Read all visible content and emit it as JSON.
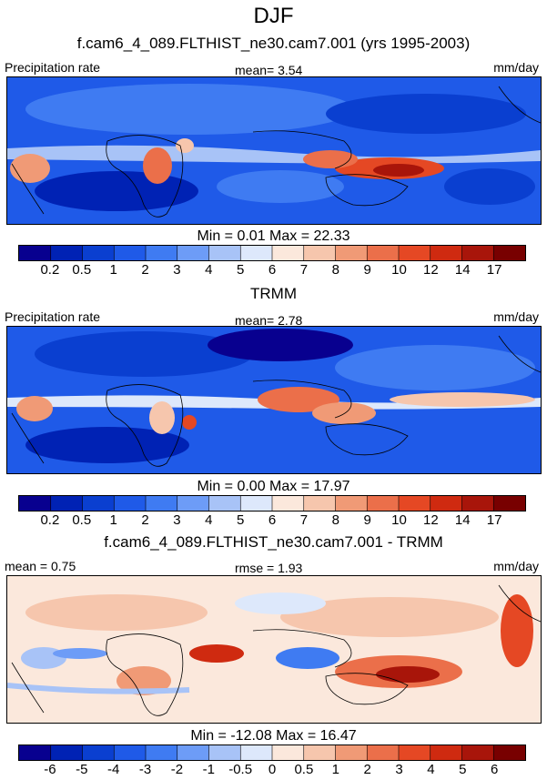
{
  "title": "DJF",
  "colors": {
    "levels": [
      "#08008f",
      "#0022b4",
      "#0a3fd0",
      "#1f5ae8",
      "#3f7bf2",
      "#6d9cf7",
      "#a8c3f7",
      "#dde8fb",
      "#fbe8dc",
      "#f6c6ad",
      "#f09a76",
      "#eb6f4a",
      "#e54824",
      "#cf2a10",
      "#a8150a",
      "#780000"
    ]
  },
  "panels": [
    {
      "title": "f.cam6_4_089.FLTHIST_ne30.cam7.001 (yrs 1995-2003)",
      "left_label": "Precipitation rate",
      "center_label": "mean=   3.54",
      "right_label": "mm/day",
      "minmax": "Min =   0.01 Max =  22.33",
      "colorbar_ticks": [
        "0.2",
        "0.5",
        "1",
        "2",
        "3",
        "4",
        "5",
        "6",
        "7",
        "8",
        "9",
        "10",
        "12",
        "14",
        "17"
      ]
    },
    {
      "title": "TRMM",
      "left_label": "Precipitation rate",
      "center_label": "mean=   2.78",
      "right_label": "mm/day",
      "minmax": "Min =   0.00 Max =  17.97",
      "colorbar_ticks": [
        "0.2",
        "0.5",
        "1",
        "2",
        "3",
        "4",
        "5",
        "6",
        "7",
        "8",
        "9",
        "10",
        "12",
        "14",
        "17"
      ]
    },
    {
      "title": "f.cam6_4_089.FLTHIST_ne30.cam7.001 - TRMM",
      "left_label": "mean =   0.75",
      "center_label": "rmse =   1.93",
      "right_label": "mm/day",
      "minmax": "Min = -12.08 Max =  16.47",
      "colorbar_ticks": [
        "-6",
        "-5",
        "-4",
        "-3",
        "-2",
        "-1",
        "-0.5",
        "0",
        "0.5",
        "1",
        "2",
        "3",
        "4",
        "5",
        "6"
      ]
    }
  ],
  "chart_data": [
    {
      "type": "heatmap",
      "title": "f.cam6_4_089.FLTHIST_ne30.cam7.001 (yrs 1995-2003)",
      "variable": "Precipitation rate",
      "units": "mm/day",
      "mean": 3.54,
      "min": 0.01,
      "max": 22.33,
      "levels": [
        0.2,
        0.5,
        1,
        2,
        3,
        4,
        5,
        6,
        7,
        8,
        9,
        10,
        12,
        14,
        17
      ]
    },
    {
      "type": "heatmap",
      "title": "TRMM",
      "variable": "Precipitation rate",
      "units": "mm/day",
      "mean": 2.78,
      "min": 0.0,
      "max": 17.97,
      "levels": [
        0.2,
        0.5,
        1,
        2,
        3,
        4,
        5,
        6,
        7,
        8,
        9,
        10,
        12,
        14,
        17
      ]
    },
    {
      "type": "heatmap",
      "title": "f.cam6_4_089.FLTHIST_ne30.cam7.001 - TRMM",
      "units": "mm/day",
      "mean": 0.75,
      "rmse": 1.93,
      "min": -12.08,
      "max": 16.47,
      "levels": [
        -6,
        -5,
        -4,
        -3,
        -2,
        -1,
        -0.5,
        0,
        0.5,
        1,
        2,
        3,
        4,
        5,
        6
      ]
    }
  ]
}
